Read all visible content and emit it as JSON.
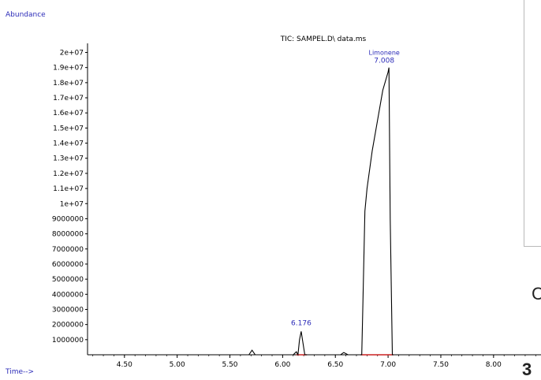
{
  "chart_data": {
    "type": "line",
    "title": "TIC: SAMPEL.D\\ data.ms",
    "ylabel": "Abundance",
    "xlabel": "Time-->",
    "xlim": [
      4.15,
      8.45
    ],
    "ylim": [
      0,
      20600000
    ],
    "x_ticks": [
      4.5,
      5.0,
      5.5,
      6.0,
      6.5,
      7.0,
      7.5,
      8.0
    ],
    "x_tick_labels": [
      "4.50",
      "5.00",
      "5.50",
      "6.00",
      "6.50",
      "7.00",
      "7.50",
      "8.00"
    ],
    "y_ticks": [
      1000000,
      2000000,
      3000000,
      4000000,
      5000000,
      6000000,
      7000000,
      8000000,
      9000000,
      10000000,
      11000000,
      12000000,
      13000000,
      14000000,
      15000000,
      16000000,
      17000000,
      18000000,
      19000000,
      20000000
    ],
    "y_tick_labels": [
      "1000000",
      "2000000",
      "3000000",
      "4000000",
      "5000000",
      "6000000",
      "7000000",
      "8000000",
      "9000000",
      "1e+07",
      "1.1e+07",
      "1.2e+07",
      "1.3e+07",
      "1.4e+07",
      "1.5e+07",
      "1.6e+07",
      "1.7e+07",
      "1.8e+07",
      "1.9e+07",
      "2e+07"
    ],
    "series": [
      {
        "color": "#000000",
        "points": [
          [
            4.15,
            0
          ],
          [
            5.68,
            0
          ],
          [
            5.71,
            300000
          ],
          [
            5.74,
            0
          ],
          [
            6.1,
            0
          ],
          [
            6.13,
            200000
          ],
          [
            6.145,
            0
          ],
          [
            6.16,
            1000000
          ],
          [
            6.176,
            1550000
          ],
          [
            6.19,
            900000
          ],
          [
            6.21,
            0
          ],
          [
            6.55,
            0
          ],
          [
            6.58,
            150000
          ],
          [
            6.62,
            0
          ],
          [
            6.75,
            0
          ],
          [
            6.76,
            3000000
          ],
          [
            6.78,
            9500000
          ],
          [
            6.8,
            11000000
          ],
          [
            6.85,
            13500000
          ],
          [
            6.9,
            15500000
          ],
          [
            6.95,
            17500000
          ],
          [
            7.0,
            18700000
          ],
          [
            7.008,
            19000000
          ],
          [
            7.02,
            9000000
          ],
          [
            7.04,
            0
          ],
          [
            8.45,
            0
          ]
        ]
      }
    ],
    "annotations": [
      {
        "text": "6.176",
        "x": 6.176,
        "y": 1550000
      },
      {
        "text": "Limonene",
        "x": 7.008,
        "y": 19000000
      },
      {
        "text": "7.008",
        "x": 7.008,
        "y": 19000000
      }
    ],
    "baseline_marks": [
      {
        "x0": 6.13,
        "x1": 6.23,
        "color": "#cc2222"
      },
      {
        "x0": 6.74,
        "x1": 7.05,
        "color": "#cc2222"
      }
    ],
    "grid": false,
    "legend": "none"
  },
  "edge_text": [
    "C",
    "3"
  ],
  "colors": {
    "label_blue": "#2b2bb8",
    "trace": "#000000",
    "baseline_mark": "#cc2222"
  }
}
